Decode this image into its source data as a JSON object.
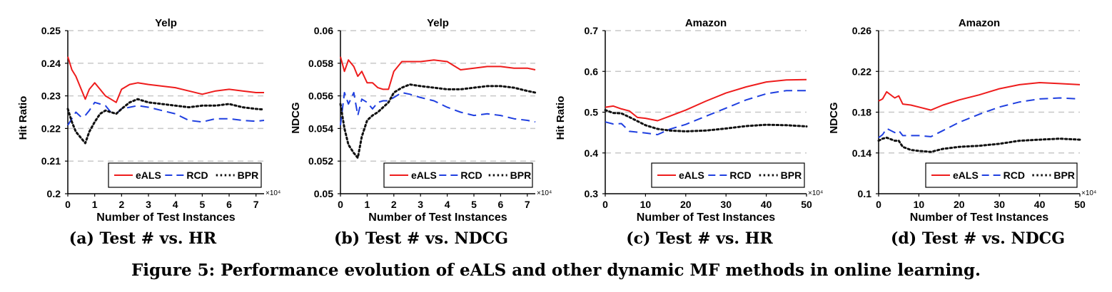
{
  "figure_caption": "Figure 5: Performance evolution of eALS and other dynamic MF methods in online learning.",
  "colors": {
    "eALS": "#ee1c1c",
    "RCD": "#1f3fe0",
    "BPR": "#111111",
    "grid": "#c8c8c8"
  },
  "chart_data": [
    {
      "type": "line",
      "title": "Yelp",
      "subcaption": "(a) Test # vs. HR",
      "xlabel": "Number of Test Instances",
      "ylabel": "Hit Ratio",
      "x_multiplier": "×10⁴",
      "xlim": [
        0,
        7.3
      ],
      "ylim": [
        0.2,
        0.25
      ],
      "xticks": [
        "0",
        "1",
        "2",
        "3",
        "4",
        "5",
        "6",
        "7"
      ],
      "xtick_values": [
        0,
        1,
        2,
        3,
        4,
        5,
        6,
        7
      ],
      "yticks": [
        "0.2",
        "0.21",
        "0.22",
        "0.23",
        "0.24",
        "0.25"
      ],
      "ytick_values": [
        0.2,
        0.21,
        0.22,
        0.23,
        0.24,
        0.25
      ],
      "grid": "horizontal dashed",
      "legend": "bottom-right",
      "series": [
        {
          "name": "eALS",
          "style": "solid",
          "x": [
            0,
            0.15,
            0.3,
            0.5,
            0.65,
            0.8,
            1.0,
            1.2,
            1.4,
            1.6,
            1.8,
            2.0,
            2.3,
            2.6,
            3.0,
            3.5,
            4.0,
            4.5,
            5.0,
            5.5,
            6.0,
            6.5,
            7.0,
            7.3
          ],
          "y": [
            0.242,
            0.238,
            0.236,
            0.232,
            0.229,
            0.232,
            0.234,
            0.232,
            0.23,
            0.229,
            0.228,
            0.232,
            0.2335,
            0.234,
            0.2335,
            0.233,
            0.2325,
            0.2315,
            0.2305,
            0.2315,
            0.232,
            0.2315,
            0.231,
            0.231
          ]
        },
        {
          "name": "RCD",
          "style": "dashed",
          "x": [
            0,
            0.15,
            0.3,
            0.5,
            0.65,
            0.8,
            1.0,
            1.2,
            1.4,
            1.6,
            1.8,
            2.0,
            2.3,
            2.6,
            3.0,
            3.5,
            4.0,
            4.5,
            5.0,
            5.5,
            6.0,
            6.5,
            7.0,
            7.3
          ],
          "y": [
            0.221,
            0.223,
            0.225,
            0.2235,
            0.224,
            0.2255,
            0.228,
            0.2275,
            0.227,
            0.225,
            0.2245,
            0.226,
            0.2265,
            0.227,
            0.2265,
            0.2255,
            0.2245,
            0.2225,
            0.222,
            0.223,
            0.223,
            0.2225,
            0.2222,
            0.2225
          ]
        },
        {
          "name": "BPR",
          "style": "dotted",
          "x": [
            0,
            0.15,
            0.3,
            0.5,
            0.65,
            0.8,
            1.0,
            1.2,
            1.4,
            1.6,
            1.8,
            2.0,
            2.3,
            2.6,
            3.0,
            3.5,
            4.0,
            4.5,
            5.0,
            5.5,
            6.0,
            6.5,
            7.0,
            7.3
          ],
          "y": [
            0.226,
            0.222,
            0.219,
            0.217,
            0.2155,
            0.219,
            0.222,
            0.2245,
            0.2255,
            0.225,
            0.2245,
            0.226,
            0.228,
            0.229,
            0.228,
            0.2275,
            0.227,
            0.2265,
            0.227,
            0.227,
            0.2275,
            0.2265,
            0.226,
            0.2258
          ]
        }
      ]
    },
    {
      "type": "line",
      "title": "Yelp",
      "subcaption": "(b) Test # vs. NDCG",
      "xlabel": "Number of Test Instances",
      "ylabel": "NDCG",
      "x_multiplier": "×10⁴",
      "xlim": [
        0,
        7.3
      ],
      "ylim": [
        0.05,
        0.06
      ],
      "xticks": [
        "0",
        "1",
        "2",
        "3",
        "4",
        "5",
        "6",
        "7"
      ],
      "xtick_values": [
        0,
        1,
        2,
        3,
        4,
        5,
        6,
        7
      ],
      "yticks": [
        "0.05",
        "0.052",
        "0.054",
        "0.056",
        "0.058",
        "0.06"
      ],
      "ytick_values": [
        0.05,
        0.052,
        0.054,
        0.056,
        0.058,
        0.06
      ],
      "grid": "horizontal dashed",
      "legend": "bottom-right",
      "series": [
        {
          "name": "eALS",
          "style": "solid",
          "x": [
            0,
            0.15,
            0.3,
            0.5,
            0.65,
            0.8,
            1.0,
            1.2,
            1.4,
            1.6,
            1.8,
            2.0,
            2.3,
            2.6,
            3.0,
            3.5,
            4.0,
            4.5,
            5.0,
            5.5,
            6.0,
            6.5,
            7.0,
            7.3
          ],
          "y": [
            0.0584,
            0.0575,
            0.0582,
            0.0578,
            0.0572,
            0.0575,
            0.0568,
            0.0568,
            0.0565,
            0.0564,
            0.0564,
            0.0575,
            0.0581,
            0.0581,
            0.0581,
            0.0582,
            0.0581,
            0.0576,
            0.0577,
            0.0578,
            0.0578,
            0.0577,
            0.0577,
            0.0576
          ]
        },
        {
          "name": "RCD",
          "style": "dashed",
          "x": [
            0,
            0.15,
            0.3,
            0.5,
            0.65,
            0.8,
            1.0,
            1.2,
            1.4,
            1.6,
            1.8,
            2.0,
            2.3,
            2.6,
            3.0,
            3.5,
            4.0,
            4.5,
            5.0,
            5.5,
            6.0,
            6.5,
            7.0,
            7.3
          ],
          "y": [
            0.0542,
            0.0562,
            0.0555,
            0.0562,
            0.0548,
            0.0558,
            0.0556,
            0.0552,
            0.0556,
            0.0557,
            0.0557,
            0.0559,
            0.0562,
            0.0561,
            0.0559,
            0.0557,
            0.0553,
            0.055,
            0.0548,
            0.0549,
            0.0548,
            0.0546,
            0.0545,
            0.0544
          ]
        },
        {
          "name": "BPR",
          "style": "dotted",
          "x": [
            0,
            0.15,
            0.3,
            0.5,
            0.65,
            0.8,
            1.0,
            1.2,
            1.4,
            1.6,
            1.8,
            2.0,
            2.3,
            2.6,
            3.0,
            3.5,
            4.0,
            4.5,
            5.0,
            5.5,
            6.0,
            6.5,
            7.0,
            7.3
          ],
          "y": [
            0.0555,
            0.054,
            0.053,
            0.0525,
            0.0522,
            0.0535,
            0.0545,
            0.0548,
            0.055,
            0.0553,
            0.0556,
            0.0562,
            0.0565,
            0.0567,
            0.0566,
            0.0565,
            0.0564,
            0.0564,
            0.0565,
            0.0566,
            0.0566,
            0.0565,
            0.0563,
            0.0562
          ]
        }
      ]
    },
    {
      "type": "line",
      "title": "Amazon",
      "subcaption": "(c) Test # vs. HR",
      "xlabel": "Number of Test Instances",
      "ylabel": "Hit Ratio",
      "x_multiplier": "×10⁴",
      "xlim": [
        0,
        50
      ],
      "ylim": [
        0.3,
        0.7
      ],
      "xticks": [
        "0",
        "10",
        "20",
        "30",
        "40",
        "50"
      ],
      "xtick_values": [
        0,
        10,
        20,
        30,
        40,
        50
      ],
      "yticks": [
        "0.3",
        "0.4",
        "0.5",
        "0.6",
        "0.7"
      ],
      "ytick_values": [
        0.3,
        0.4,
        0.5,
        0.6,
        0.7
      ],
      "grid": "horizontal dashed",
      "legend": "bottom-right",
      "series": [
        {
          "name": "eALS",
          "style": "solid",
          "x": [
            0,
            2,
            4,
            6,
            8,
            10,
            13,
            16,
            20,
            25,
            30,
            35,
            40,
            45,
            50
          ],
          "y": [
            0.512,
            0.515,
            0.508,
            0.503,
            0.487,
            0.485,
            0.479,
            0.49,
            0.505,
            0.527,
            0.547,
            0.562,
            0.574,
            0.579,
            0.58
          ]
        },
        {
          "name": "RCD",
          "style": "dashed",
          "x": [
            0,
            2,
            4,
            6,
            8,
            10,
            13,
            16,
            20,
            25,
            30,
            35,
            40,
            45,
            50
          ],
          "y": [
            0.476,
            0.471,
            0.472,
            0.453,
            0.451,
            0.449,
            0.445,
            0.458,
            0.47,
            0.49,
            0.51,
            0.53,
            0.545,
            0.553,
            0.553
          ]
        },
        {
          "name": "BPR",
          "style": "dotted",
          "x": [
            0,
            2,
            4,
            6,
            8,
            10,
            13,
            16,
            20,
            25,
            30,
            35,
            40,
            45,
            50
          ],
          "y": [
            0.505,
            0.498,
            0.497,
            0.488,
            0.478,
            0.468,
            0.459,
            0.455,
            0.453,
            0.455,
            0.46,
            0.466,
            0.469,
            0.468,
            0.465
          ]
        }
      ]
    },
    {
      "type": "line",
      "title": "Amazon",
      "subcaption": "(d) Test # vs. NDCG",
      "xlabel": "Number of Test Instances",
      "ylabel": "NDCG",
      "x_multiplier": "×10⁴",
      "xlim": [
        0,
        50
      ],
      "ylim": [
        0.1,
        0.26
      ],
      "xticks": [
        "0",
        "10",
        "20",
        "30",
        "40",
        "50"
      ],
      "xtick_values": [
        0,
        10,
        20,
        30,
        40,
        50
      ],
      "yticks": [
        "0.1",
        "0.14",
        "0.18",
        "0.22",
        "0.26"
      ],
      "ytick_values": [
        0.1,
        0.14,
        0.18,
        0.22,
        0.26
      ],
      "grid": "horizontal dashed",
      "legend": "bottom-right",
      "series": [
        {
          "name": "eALS",
          "style": "solid",
          "x": [
            0,
            1,
            2,
            4,
            5,
            6,
            8,
            10,
            13,
            16,
            20,
            25,
            30,
            35,
            40,
            45,
            50
          ],
          "y": [
            0.191,
            0.193,
            0.2,
            0.194,
            0.196,
            0.188,
            0.187,
            0.185,
            0.182,
            0.187,
            0.192,
            0.197,
            0.203,
            0.207,
            0.209,
            0.208,
            0.207
          ]
        },
        {
          "name": "RCD",
          "style": "dashed",
          "x": [
            0,
            1,
            2,
            4,
            5,
            6,
            8,
            10,
            13,
            16,
            20,
            25,
            30,
            35,
            40,
            45,
            50
          ],
          "y": [
            0.155,
            0.158,
            0.164,
            0.16,
            0.162,
            0.157,
            0.157,
            0.157,
            0.156,
            0.162,
            0.17,
            0.178,
            0.185,
            0.19,
            0.193,
            0.194,
            0.193
          ]
        },
        {
          "name": "BPR",
          "style": "dotted",
          "x": [
            0,
            1,
            2,
            4,
            5,
            6,
            8,
            10,
            13,
            16,
            20,
            25,
            30,
            35,
            40,
            45,
            50
          ],
          "y": [
            0.152,
            0.154,
            0.155,
            0.152,
            0.152,
            0.146,
            0.143,
            0.142,
            0.141,
            0.144,
            0.146,
            0.147,
            0.149,
            0.152,
            0.153,
            0.154,
            0.153
          ]
        }
      ]
    }
  ]
}
